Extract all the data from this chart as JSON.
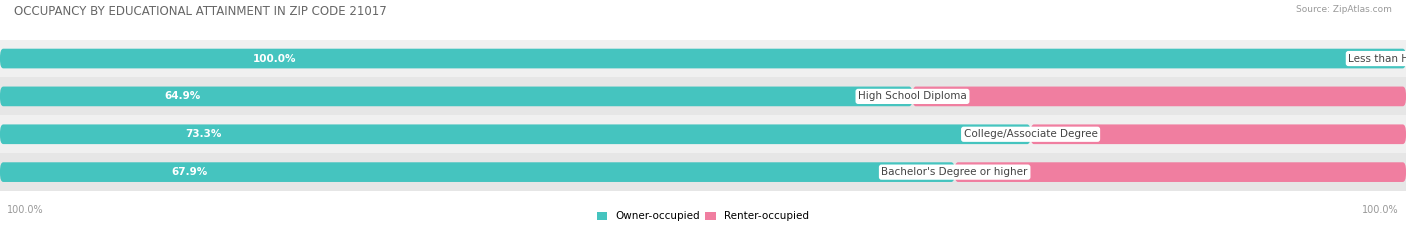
{
  "title": "OCCUPANCY BY EDUCATIONAL ATTAINMENT IN ZIP CODE 21017",
  "source": "Source: ZipAtlas.com",
  "categories": [
    "Less than High School",
    "High School Diploma",
    "College/Associate Degree",
    "Bachelor's Degree or higher"
  ],
  "owner_values": [
    100.0,
    64.9,
    73.3,
    67.9
  ],
  "renter_values": [
    0.0,
    35.1,
    26.7,
    32.1
  ],
  "owner_color": "#45C4BF",
  "renter_color": "#F07EA0",
  "row_bg_odd": "#F0F0F0",
  "row_bg_even": "#E6E6E6",
  "title_fontsize": 8.5,
  "label_fontsize": 7.5,
  "tick_fontsize": 7,
  "source_fontsize": 6.5,
  "axis_label_left": "100.0%",
  "axis_label_right": "100.0%",
  "figsize": [
    14.06,
    2.33
  ],
  "dpi": 100
}
